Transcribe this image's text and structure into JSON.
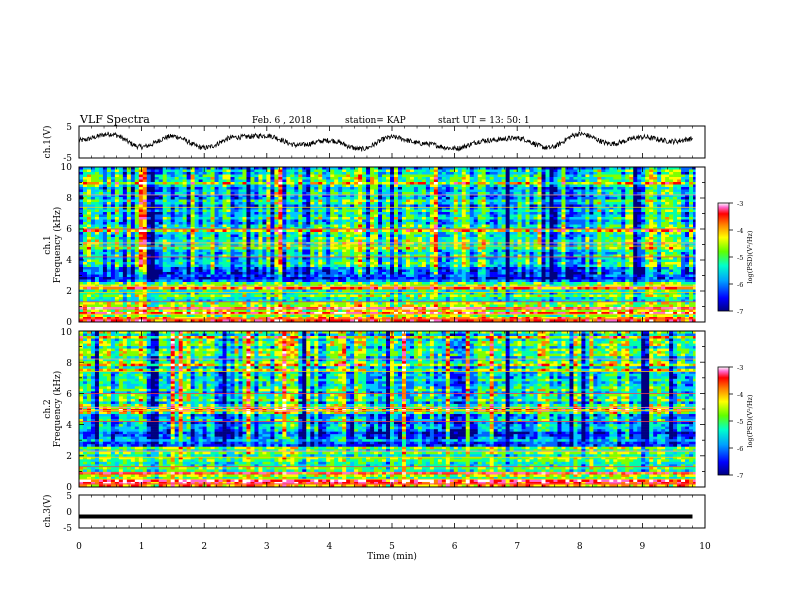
{
  "header": {
    "title": "VLF Spectra",
    "date": "Feb. 6  , 2018",
    "station": "station= KAP",
    "start": "start  UT  =   13: 50: 1"
  },
  "colors": {
    "spectrogram_scale": [
      "#000080",
      "#0000ff",
      "#0064ff",
      "#00c8ff",
      "#00ffaa",
      "#7fff00",
      "#ffff00",
      "#ff8000",
      "#ff0000",
      "#ff66cc",
      "#ffffff"
    ],
    "trace": "#000000"
  },
  "colorbar": {
    "label": "log(PSD)(V²/Hz)",
    "ticks": [
      "-3",
      "-4",
      "-5",
      "-6",
      "-7"
    ]
  },
  "chart_data": [
    {
      "id": "ch1-waveform",
      "type": "line",
      "ylabel": "ch.1(V)",
      "ylim": [
        -5,
        5
      ],
      "yticks": [
        "5",
        "-5"
      ],
      "xlim": [
        0,
        10
      ],
      "description_values": {
        "x_min": [
          0,
          0.5,
          1,
          1.5,
          2,
          2.5,
          3,
          3.5,
          4,
          4.5,
          5,
          5.5,
          6,
          6.5,
          7,
          7.5,
          8,
          8.5,
          9,
          9.5,
          9.8
        ],
        "y_V": [
          0.5,
          2.5,
          -1.5,
          1.8,
          -1.8,
          1.5,
          2.0,
          -1.0,
          0.5,
          -2.2,
          1.5,
          -0.5,
          -2.0,
          0.5,
          1.2,
          -1.8,
          2.5,
          -0.5,
          1.5,
          0.2,
          1.0
        ]
      }
    },
    {
      "id": "ch1-spectrogram",
      "type": "heatmap",
      "ylabel": "Frequency (kHz)",
      "channel_label": "ch.1",
      "ylim": [
        0,
        10
      ],
      "yticks": [
        "0",
        "2",
        "4",
        "6",
        "8",
        "10"
      ],
      "xlim": [
        0,
        10
      ],
      "zlim": [
        -7,
        -3
      ]
    },
    {
      "id": "ch2-spectrogram",
      "type": "heatmap",
      "ylabel": "Frequency (kHz)",
      "channel_label": "ch.2",
      "ylim": [
        0,
        10
      ],
      "yticks": [
        "0",
        "2",
        "4",
        "6",
        "8",
        "10"
      ],
      "xlim": [
        0,
        10
      ],
      "zlim": [
        -7,
        -3
      ]
    },
    {
      "id": "ch3-waveform",
      "type": "line",
      "ylabel": "ch.3(V)",
      "ylim": [
        -5,
        5
      ],
      "yticks": [
        "5",
        "0",
        "-5"
      ],
      "xlim": [
        0,
        10
      ],
      "xlabel": "Time (min)",
      "xticks": [
        "0",
        "1",
        "2",
        "3",
        "4",
        "5",
        "6",
        "7",
        "8",
        "9",
        "10"
      ],
      "constant_value_V": -1.5,
      "data_xmax": 9.8
    }
  ]
}
